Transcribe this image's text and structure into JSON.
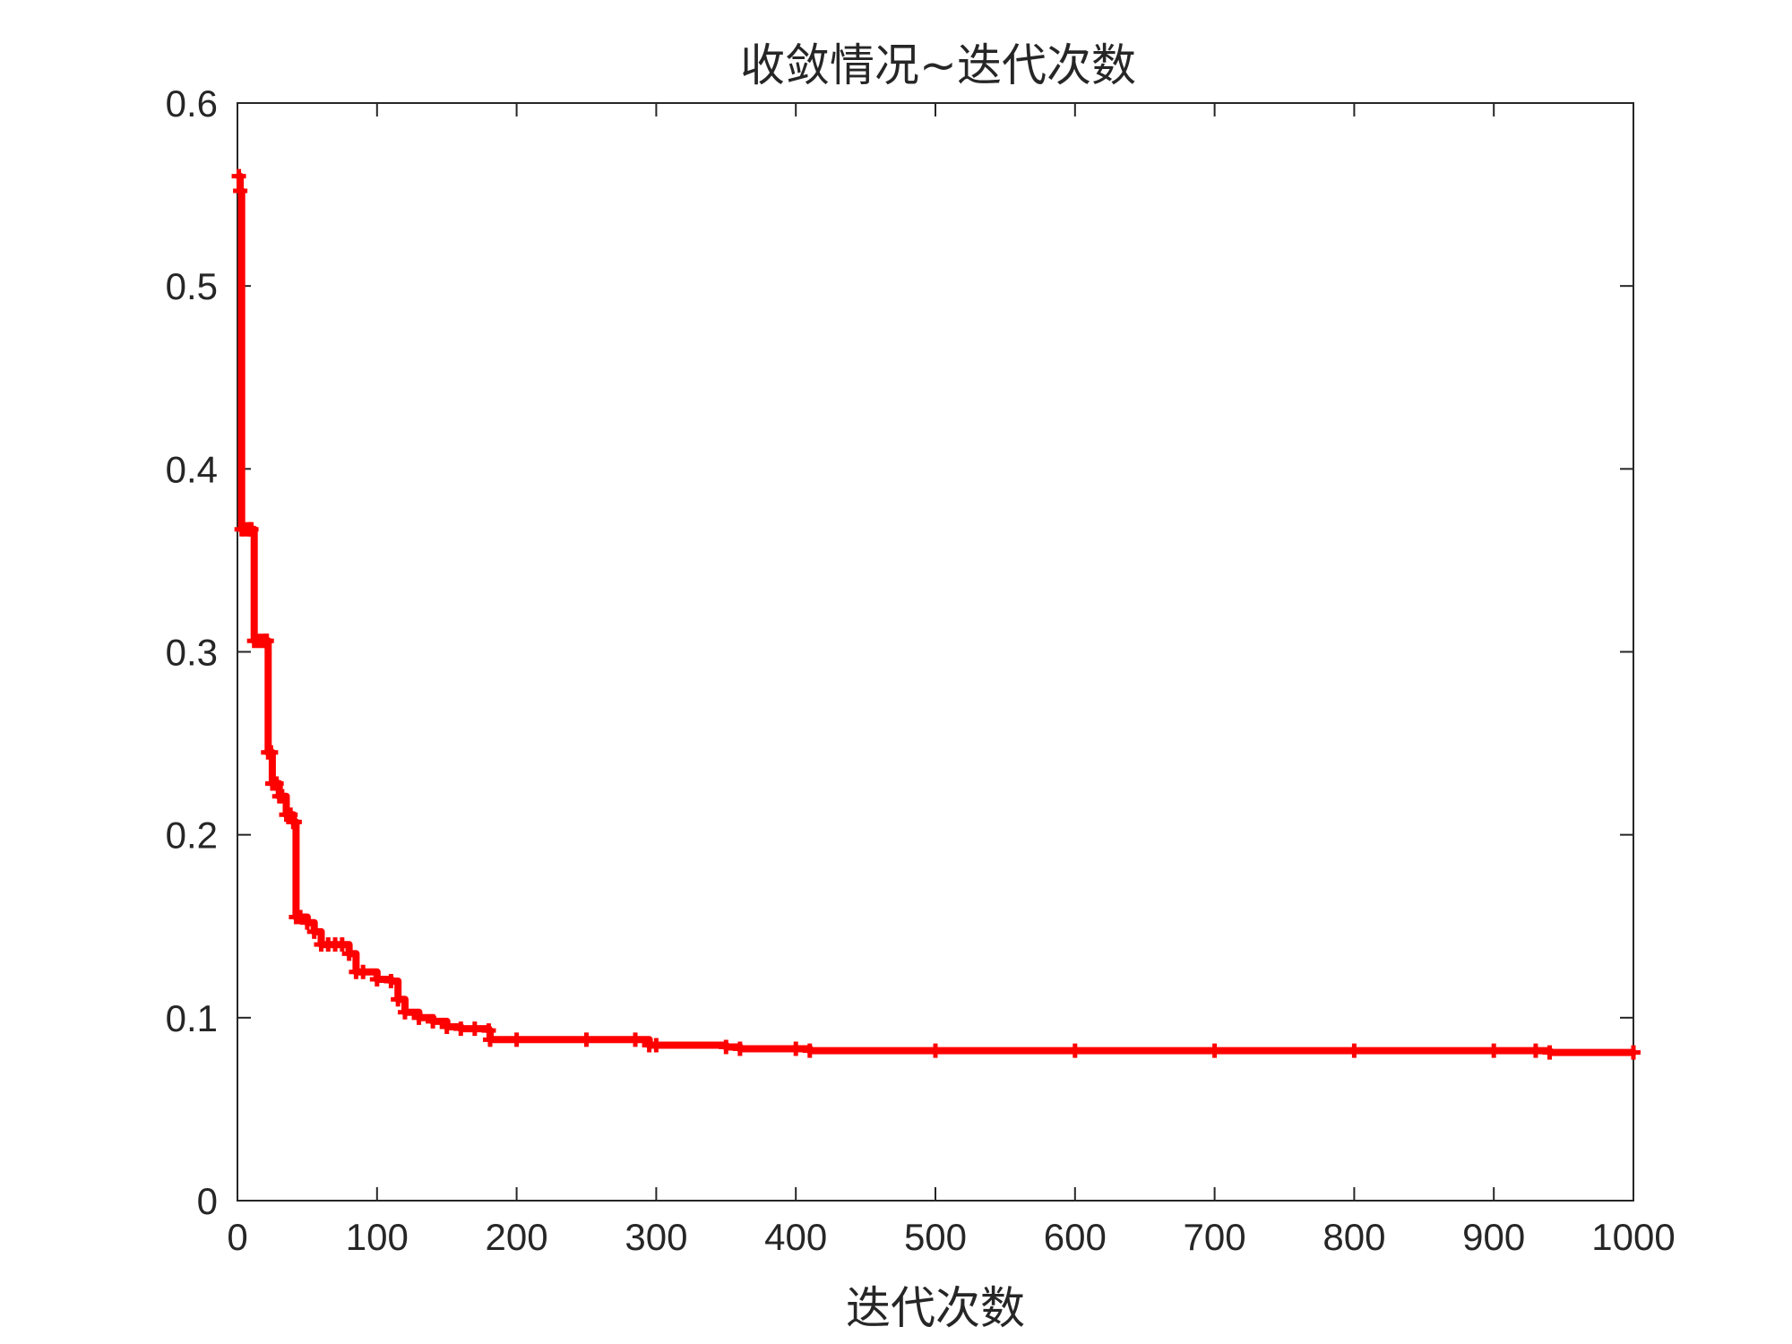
{
  "chart_data": {
    "type": "line",
    "title": "收敛情况~迭代次数",
    "xlabel": "迭代次数",
    "ylabel": "",
    "xlim": [
      0,
      1000
    ],
    "ylim": [
      0,
      0.6
    ],
    "x_ticks": [
      "0",
      "100",
      "200",
      "300",
      "400",
      "500",
      "600",
      "700",
      "800",
      "900",
      "1000"
    ],
    "y_ticks": [
      "0",
      "0.1",
      "0.2",
      "0.3",
      "0.4",
      "0.5",
      "0.6"
    ],
    "grid": false,
    "legend": "none",
    "series": [
      {
        "color": "#ff0000",
        "marker": "plus",
        "step": true,
        "x": [
          1,
          2,
          3,
          5,
          8,
          9,
          10,
          12,
          15,
          18,
          20,
          21,
          22,
          24,
          25,
          28,
          30,
          32,
          35,
          38,
          40,
          41,
          42,
          45,
          50,
          55,
          60,
          65,
          70,
          75,
          80,
          85,
          90,
          100,
          110,
          115,
          120,
          130,
          140,
          150,
          160,
          170,
          180,
          181,
          200,
          250,
          285,
          295,
          300,
          350,
          360,
          400,
          410,
          500,
          600,
          700,
          800,
          900,
          930,
          940,
          1000
        ],
        "y": [
          0.56,
          0.552,
          0.367,
          0.367,
          0.367,
          0.367,
          0.367,
          0.306,
          0.306,
          0.306,
          0.306,
          0.306,
          0.245,
          0.245,
          0.228,
          0.228,
          0.221,
          0.221,
          0.211,
          0.211,
          0.207,
          0.207,
          0.155,
          0.155,
          0.152,
          0.147,
          0.14,
          0.14,
          0.14,
          0.14,
          0.135,
          0.125,
          0.125,
          0.121,
          0.12,
          0.11,
          0.103,
          0.1,
          0.098,
          0.095,
          0.094,
          0.094,
          0.093,
          0.088,
          0.088,
          0.088,
          0.088,
          0.085,
          0.085,
          0.084,
          0.083,
          0.083,
          0.082,
          0.082,
          0.082,
          0.082,
          0.082,
          0.082,
          0.082,
          0.081,
          0.081
        ]
      }
    ]
  }
}
